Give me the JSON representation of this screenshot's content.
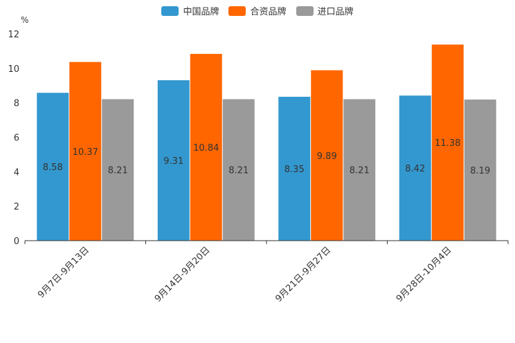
{
  "chart_data": {
    "type": "bar",
    "title": "",
    "unit": "%",
    "categories": [
      "9月7日-9月13日",
      "9月14日-9月20日",
      "9月21日-9月27日",
      "9月28日-10月4日"
    ],
    "series": [
      {
        "name": "中国品牌",
        "color": "#3398cf",
        "values": [
          8.58,
          9.31,
          8.35,
          8.42
        ],
        "labels": [
          "8.58",
          "9.31",
          "8.35",
          "8.42"
        ]
      },
      {
        "name": "合资品牌",
        "color": "#ff6600",
        "values": [
          10.37,
          10.84,
          9.89,
          11.38
        ],
        "labels": [
          "10.37",
          "10.84",
          "9.89",
          "11.38"
        ]
      },
      {
        "name": "进口品牌",
        "color": "#9a9a9a",
        "values": [
          8.21,
          8.21,
          8.21,
          8.19
        ],
        "labels": [
          "8.21",
          "8.21",
          "8.21",
          "8.19"
        ]
      }
    ],
    "ylim": [
      0,
      12
    ],
    "yticks": [
      "0",
      "2",
      "4",
      "6",
      "8",
      "10",
      "12"
    ],
    "legend_position": "top-center"
  }
}
